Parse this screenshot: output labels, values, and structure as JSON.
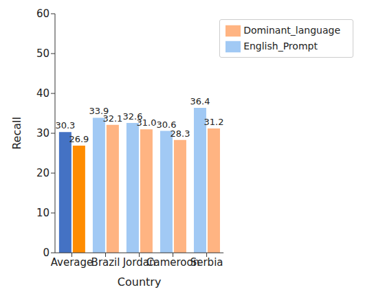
{
  "chart_data": {
    "type": "bar",
    "categories": [
      "Average",
      "Brazil",
      "Jordan",
      "Cameroon",
      "Serbia"
    ],
    "series": [
      {
        "name": "English_Prompt",
        "color": "#a1c9f4",
        "colors": [
          "#4472c4",
          "#a1c9f4",
          "#a1c9f4",
          "#a1c9f4",
          "#a1c9f4"
        ],
        "values": [
          30.3,
          33.9,
          32.6,
          30.6,
          36.4
        ],
        "value_labels": [
          "30.3",
          "33.9",
          "32.6",
          "30.6",
          "36.4"
        ]
      },
      {
        "name": "Dominant_language",
        "color": "#ffb482",
        "colors": [
          "#ff8c00",
          "#ffb482",
          "#ffb482",
          "#ffb482",
          "#ffb482"
        ],
        "values": [
          26.9,
          32.1,
          31.0,
          28.3,
          31.2
        ],
        "value_labels": [
          "26.9",
          "32.1",
          "31.0",
          "28.3",
          "31.2"
        ]
      }
    ],
    "x_label": "Country",
    "y_label": "Recall",
    "ylim": [
      0,
      60
    ],
    "yticks": [
      0,
      10,
      20,
      30,
      40,
      50,
      60
    ],
    "legend": "upper right",
    "data_labels": true
  }
}
